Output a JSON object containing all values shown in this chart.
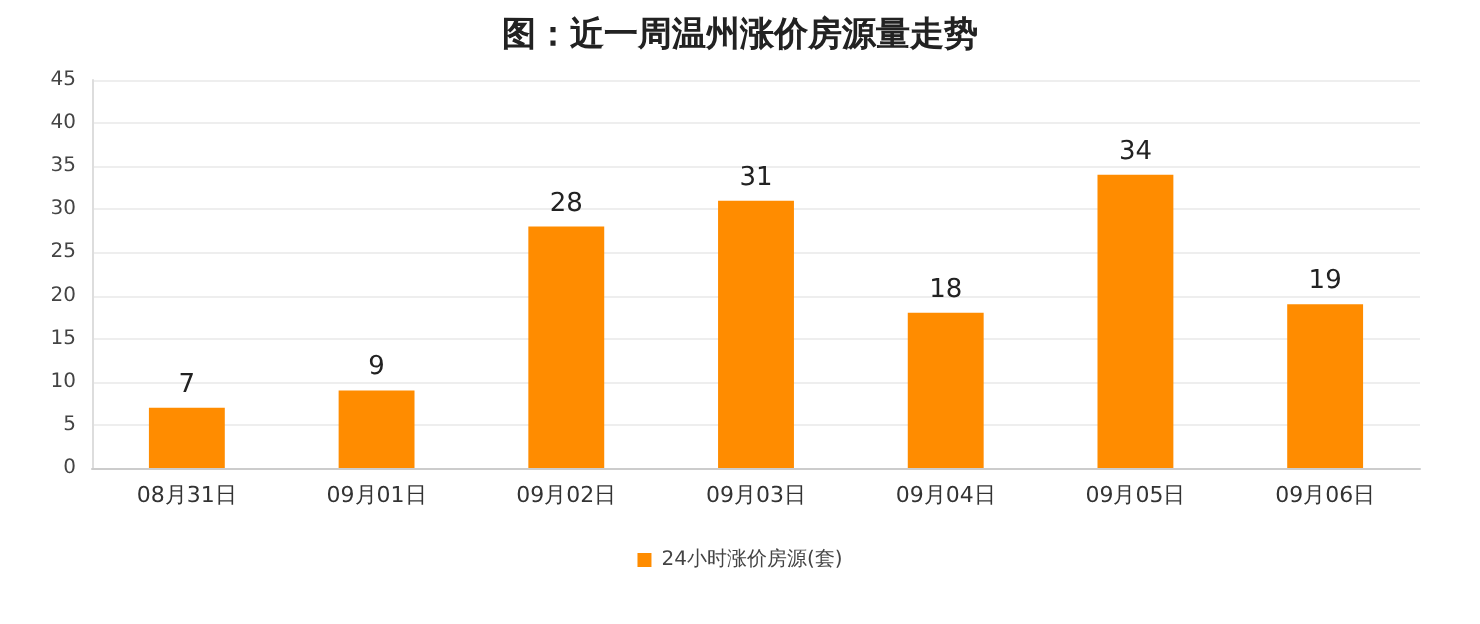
{
  "chart_data": {
    "type": "bar",
    "title": "图：近一周温州涨价房源量走势",
    "categories": [
      "08月31日",
      "09月01日",
      "09月02日",
      "09月03日",
      "09月04日",
      "09月05日",
      "09月06日"
    ],
    "series": [
      {
        "name": "24小时涨价房源(套)",
        "color": "#ff8c00",
        "values": [
          7,
          9,
          28,
          31,
          18,
          34,
          19
        ]
      }
    ],
    "ylim": [
      0,
      45
    ],
    "yticks": [
      0,
      5,
      10,
      15,
      20,
      25,
      30,
      35,
      40,
      45
    ],
    "grid": "y",
    "legend": "bottom",
    "data_labels": true
  }
}
